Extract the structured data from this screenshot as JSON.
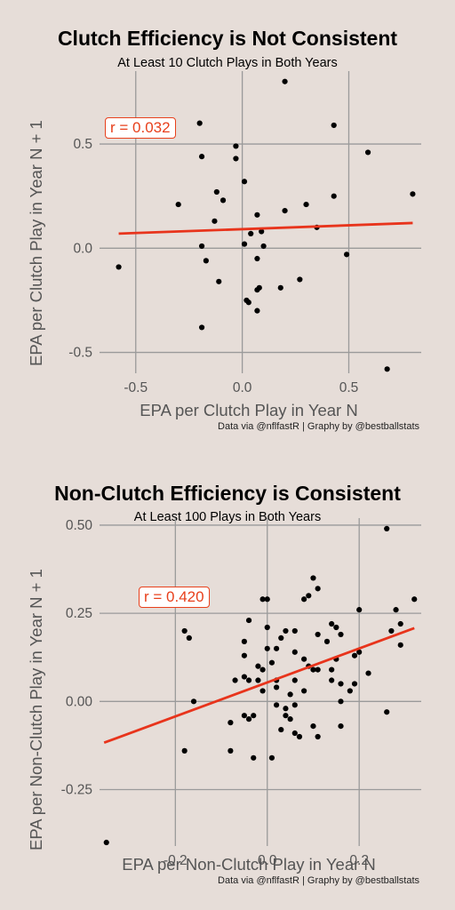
{
  "chart_data": [
    {
      "type": "scatter",
      "title": "Clutch Efficiency is Not Consistent",
      "subtitle": "At Least 10 Clutch Plays in Both Years",
      "xlabel": "EPA per Clutch Play in Year N",
      "ylabel": "EPA per Clutch Play in Year N + 1",
      "caption": "Data via @nflfastR | Graphy by @bestballstats",
      "annotation": "r = 0.032",
      "xlim": [
        -0.67,
        0.84
      ],
      "ylim": [
        -0.6,
        0.85
      ],
      "xticks": [
        -0.5,
        0.0,
        0.5
      ],
      "xtick_labels": [
        "-0.5",
        "0.0",
        "0.5"
      ],
      "yticks": [
        -0.5,
        0.0,
        0.5
      ],
      "ytick_labels": [
        "-0.5",
        "0.0",
        "0.5"
      ],
      "grid": true,
      "trend_line": {
        "x": [
          -0.58,
          0.8
        ],
        "y": [
          0.07,
          0.121
        ],
        "color": "#e8341c"
      },
      "points": [
        {
          "x": 0.2,
          "y": 0.8
        },
        {
          "x": -0.2,
          "y": 0.6
        },
        {
          "x": 0.43,
          "y": 0.59
        },
        {
          "x": -0.03,
          "y": 0.49
        },
        {
          "x": 0.59,
          "y": 0.46
        },
        {
          "x": -0.19,
          "y": 0.44
        },
        {
          "x": -0.03,
          "y": 0.43
        },
        {
          "x": 0.01,
          "y": 0.32
        },
        {
          "x": -0.12,
          "y": 0.27
        },
        {
          "x": 0.8,
          "y": 0.26
        },
        {
          "x": 0.43,
          "y": 0.25
        },
        {
          "x": -0.09,
          "y": 0.23
        },
        {
          "x": -0.3,
          "y": 0.21
        },
        {
          "x": 0.3,
          "y": 0.21
        },
        {
          "x": 0.2,
          "y": 0.18
        },
        {
          "x": 0.07,
          "y": 0.16
        },
        {
          "x": -0.13,
          "y": 0.13
        },
        {
          "x": 0.35,
          "y": 0.1
        },
        {
          "x": 0.04,
          "y": 0.07
        },
        {
          "x": 0.09,
          "y": 0.08
        },
        {
          "x": 0.01,
          "y": 0.02
        },
        {
          "x": 0.1,
          "y": 0.01
        },
        {
          "x": -0.19,
          "y": 0.01
        },
        {
          "x": 0.49,
          "y": -0.03
        },
        {
          "x": 0.07,
          "y": -0.05
        },
        {
          "x": -0.17,
          "y": -0.06
        },
        {
          "x": -0.58,
          "y": -0.09
        },
        {
          "x": 0.27,
          "y": -0.15
        },
        {
          "x": -0.11,
          "y": -0.16
        },
        {
          "x": 0.08,
          "y": -0.19
        },
        {
          "x": 0.18,
          "y": -0.19
        },
        {
          "x": 0.07,
          "y": -0.2
        },
        {
          "x": 0.02,
          "y": -0.25
        },
        {
          "x": 0.03,
          "y": -0.26
        },
        {
          "x": 0.07,
          "y": -0.3
        },
        {
          "x": -0.19,
          "y": -0.38
        },
        {
          "x": 0.68,
          "y": -0.58
        }
      ]
    },
    {
      "type": "scatter",
      "title": "Non-Clutch Efficiency is Consistent",
      "subtitle": "At Least 100 Plays in Both Years",
      "xlabel": "EPA per Non-Clutch Play in Year N",
      "ylabel": "EPA per Non-Clutch Play in Year N + 1",
      "caption": "Data via @nflfastR | Graphy by @bestballstats",
      "annotation": "r = 0.420",
      "xlim": [
        -0.365,
        0.335
      ],
      "ylim": [
        -0.41,
        0.52
      ],
      "xticks": [
        -0.2,
        0.0,
        0.2
      ],
      "xtick_labels": [
        "-0.2",
        "0.0",
        "0.2"
      ],
      "yticks": [
        -0.25,
        0.0,
        0.25,
        0.5
      ],
      "ytick_labels": [
        "-0.25",
        "0.00",
        "0.25",
        "0.50"
      ],
      "grid": true,
      "trend_line": {
        "x": [
          -0.355,
          0.32
        ],
        "y": [
          -0.117,
          0.208
        ],
        "color": "#e8341c"
      },
      "points": [
        {
          "x": 0.26,
          "y": 0.49
        },
        {
          "x": 0.1,
          "y": 0.35
        },
        {
          "x": 0.11,
          "y": 0.32
        },
        {
          "x": 0.09,
          "y": 0.3
        },
        {
          "x": -0.01,
          "y": 0.29
        },
        {
          "x": 0.0,
          "y": 0.29
        },
        {
          "x": 0.32,
          "y": 0.29
        },
        {
          "x": 0.08,
          "y": 0.29
        },
        {
          "x": 0.28,
          "y": 0.26
        },
        {
          "x": 0.2,
          "y": 0.26
        },
        {
          "x": -0.04,
          "y": 0.23
        },
        {
          "x": 0.29,
          "y": 0.22
        },
        {
          "x": 0.14,
          "y": 0.22
        },
        {
          "x": 0.0,
          "y": 0.21
        },
        {
          "x": 0.15,
          "y": 0.21
        },
        {
          "x": -0.18,
          "y": 0.2
        },
        {
          "x": 0.06,
          "y": 0.2
        },
        {
          "x": 0.27,
          "y": 0.2
        },
        {
          "x": 0.04,
          "y": 0.2
        },
        {
          "x": 0.16,
          "y": 0.19
        },
        {
          "x": -0.17,
          "y": 0.18
        },
        {
          "x": 0.11,
          "y": 0.19
        },
        {
          "x": 0.03,
          "y": 0.18
        },
        {
          "x": 0.13,
          "y": 0.17
        },
        {
          "x": -0.05,
          "y": 0.17
        },
        {
          "x": 0.29,
          "y": 0.16
        },
        {
          "x": 0.02,
          "y": 0.15
        },
        {
          "x": 0.0,
          "y": 0.15
        },
        {
          "x": 0.06,
          "y": 0.14
        },
        {
          "x": 0.2,
          "y": 0.14
        },
        {
          "x": -0.05,
          "y": 0.13
        },
        {
          "x": 0.08,
          "y": 0.12
        },
        {
          "x": 0.19,
          "y": 0.13
        },
        {
          "x": 0.01,
          "y": 0.11
        },
        {
          "x": 0.15,
          "y": 0.12
        },
        {
          "x": -0.02,
          "y": 0.1
        },
        {
          "x": 0.09,
          "y": 0.1
        },
        {
          "x": -0.01,
          "y": 0.09
        },
        {
          "x": 0.1,
          "y": 0.09
        },
        {
          "x": 0.11,
          "y": 0.09
        },
        {
          "x": 0.14,
          "y": 0.09
        },
        {
          "x": 0.22,
          "y": 0.08
        },
        {
          "x": -0.05,
          "y": 0.07
        },
        {
          "x": -0.07,
          "y": 0.06
        },
        {
          "x": -0.04,
          "y": 0.06
        },
        {
          "x": -0.02,
          "y": 0.06
        },
        {
          "x": 0.02,
          "y": 0.06
        },
        {
          "x": 0.06,
          "y": 0.06
        },
        {
          "x": 0.14,
          "y": 0.06
        },
        {
          "x": 0.16,
          "y": 0.05
        },
        {
          "x": 0.19,
          "y": 0.05
        },
        {
          "x": 0.02,
          "y": 0.04
        },
        {
          "x": -0.01,
          "y": 0.03
        },
        {
          "x": 0.05,
          "y": 0.02
        },
        {
          "x": 0.08,
          "y": 0.03
        },
        {
          "x": 0.18,
          "y": 0.03
        },
        {
          "x": -0.16,
          "y": 0.0
        },
        {
          "x": 0.02,
          "y": -0.01
        },
        {
          "x": 0.04,
          "y": -0.02
        },
        {
          "x": 0.06,
          "y": -0.01
        },
        {
          "x": 0.16,
          "y": 0.0
        },
        {
          "x": 0.26,
          "y": -0.03
        },
        {
          "x": 0.04,
          "y": -0.04
        },
        {
          "x": -0.03,
          "y": -0.04
        },
        {
          "x": -0.04,
          "y": -0.05
        },
        {
          "x": -0.05,
          "y": -0.04
        },
        {
          "x": 0.05,
          "y": -0.05
        },
        {
          "x": -0.08,
          "y": -0.06
        },
        {
          "x": 0.1,
          "y": -0.07
        },
        {
          "x": 0.16,
          "y": -0.07
        },
        {
          "x": 0.03,
          "y": -0.08
        },
        {
          "x": 0.06,
          "y": -0.09
        },
        {
          "x": 0.07,
          "y": -0.1
        },
        {
          "x": 0.11,
          "y": -0.1
        },
        {
          "x": -0.18,
          "y": -0.14
        },
        {
          "x": -0.08,
          "y": -0.14
        },
        {
          "x": -0.03,
          "y": -0.16
        },
        {
          "x": 0.01,
          "y": -0.16
        },
        {
          "x": -0.35,
          "y": -0.4
        }
      ]
    }
  ]
}
